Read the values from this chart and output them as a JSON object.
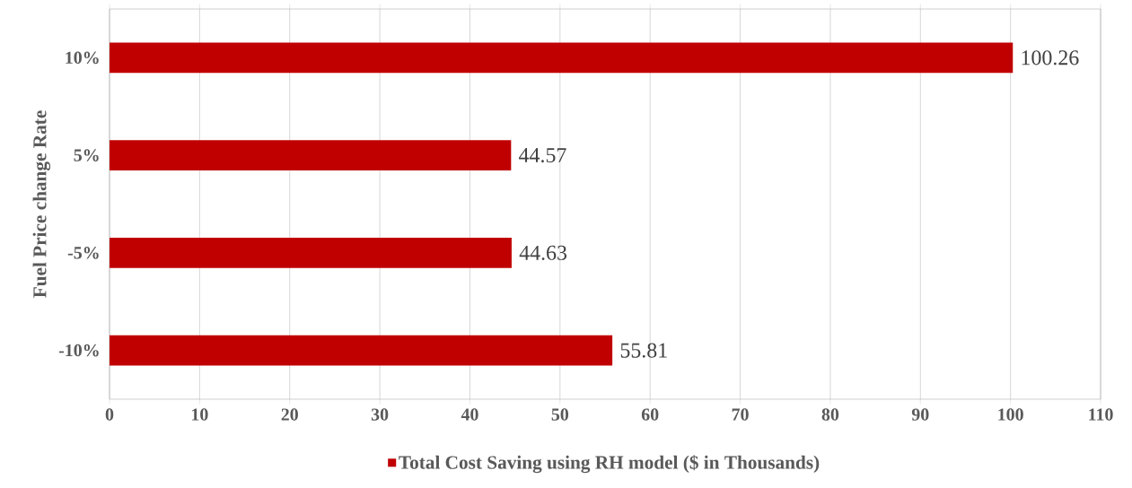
{
  "chart_data": {
    "type": "bar",
    "orientation": "horizontal",
    "ylabel": "Fuel Price change Rate",
    "categories": [
      "10%",
      "5%",
      "-5%",
      "-10%"
    ],
    "series": [
      {
        "name": "Total Cost Saving using RH model ($ in Thousands)",
        "color": "#c00000",
        "values": [
          100.26,
          44.57,
          44.63,
          55.81
        ]
      }
    ],
    "xlim": [
      0,
      110
    ],
    "xticks": [
      0,
      10,
      20,
      30,
      40,
      50,
      60,
      70,
      80,
      90,
      100,
      110
    ],
    "grid": "x",
    "legend": "bottom",
    "data_labels": true
  }
}
